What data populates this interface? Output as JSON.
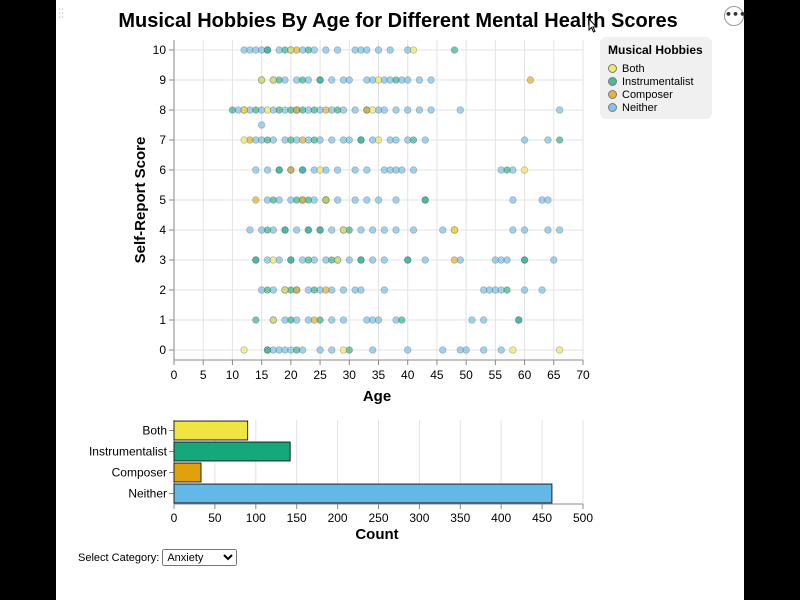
{
  "title": "Musical Hobbies By Age for Different Mental Health Scores",
  "menu_icon": "more-horizontal-icon",
  "colors": {
    "Both": "#f0e442",
    "Instrumentalist": "#14a87a",
    "Composer": "#e0a10a",
    "Neither": "#62b8e6",
    "grid": "#e3e3e3",
    "axis": "#888888"
  },
  "legend": {
    "title": "Musical Hobbies",
    "items": [
      "Both",
      "Instrumentalist",
      "Composer",
      "Neither"
    ]
  },
  "controls": {
    "select_label": "Select Category:",
    "selected": "Anxiety"
  },
  "chart_data": [
    {
      "type": "scatter",
      "title": "Musical Hobbies By Age for Different Mental Health Scores",
      "xlabel": "Age",
      "ylabel": "Self-Report Score",
      "xlim": [
        0,
        70
      ],
      "ylim": [
        0,
        10
      ],
      "xticks": [
        0,
        5,
        10,
        15,
        20,
        25,
        30,
        35,
        40,
        45,
        50,
        55,
        60,
        65,
        70
      ],
      "yticks": [
        0,
        1,
        2,
        3,
        4,
        5,
        6,
        7,
        8,
        9,
        10
      ],
      "grid": true,
      "legend_position": "top-right",
      "series": [
        {
          "name": "Neither",
          "points": [
            [
              12,
              10
            ],
            [
              13,
              10
            ],
            [
              14,
              10
            ],
            [
              15,
              10
            ],
            [
              16,
              10
            ],
            [
              18,
              10
            ],
            [
              20,
              10
            ],
            [
              22,
              10
            ],
            [
              24,
              10
            ],
            [
              26,
              10
            ],
            [
              28,
              10
            ],
            [
              31,
              10
            ],
            [
              32,
              10
            ],
            [
              33,
              10
            ],
            [
              35,
              10
            ],
            [
              37,
              10
            ],
            [
              40,
              10
            ],
            [
              15,
              9
            ],
            [
              17,
              9
            ],
            [
              19,
              9
            ],
            [
              21,
              9
            ],
            [
              23,
              9
            ],
            [
              25,
              9
            ],
            [
              27,
              9
            ],
            [
              29,
              9
            ],
            [
              30,
              9
            ],
            [
              33,
              9
            ],
            [
              34,
              9
            ],
            [
              36,
              9
            ],
            [
              37,
              9
            ],
            [
              39,
              9
            ],
            [
              40,
              9
            ],
            [
              42,
              9
            ],
            [
              44,
              9
            ],
            [
              11,
              8
            ],
            [
              13,
              8
            ],
            [
              15,
              8
            ],
            [
              17,
              8
            ],
            [
              19,
              8
            ],
            [
              21,
              8
            ],
            [
              23,
              8
            ],
            [
              25,
              8
            ],
            [
              27,
              8
            ],
            [
              29,
              8
            ],
            [
              31,
              8
            ],
            [
              33,
              8
            ],
            [
              35,
              8
            ],
            [
              36,
              8
            ],
            [
              38,
              8
            ],
            [
              40,
              8
            ],
            [
              42,
              8
            ],
            [
              44,
              8
            ],
            [
              49,
              8
            ],
            [
              66,
              8
            ],
            [
              15,
              7.5
            ],
            [
              14,
              7
            ],
            [
              15,
              7
            ],
            [
              17,
              7
            ],
            [
              19,
              7
            ],
            [
              21,
              7
            ],
            [
              23,
              7
            ],
            [
              25,
              7
            ],
            [
              27,
              7
            ],
            [
              29,
              7
            ],
            [
              30,
              7
            ],
            [
              32,
              7
            ],
            [
              34,
              7
            ],
            [
              37,
              7
            ],
            [
              38,
              7
            ],
            [
              40,
              7
            ],
            [
              43,
              7
            ],
            [
              60,
              7
            ],
            [
              64,
              7
            ],
            [
              14,
              6
            ],
            [
              16,
              6
            ],
            [
              18,
              6
            ],
            [
              20,
              6
            ],
            [
              22,
              6
            ],
            [
              24,
              6
            ],
            [
              26,
              6
            ],
            [
              28,
              6
            ],
            [
              31,
              6
            ],
            [
              33,
              6
            ],
            [
              36,
              6
            ],
            [
              37,
              6
            ],
            [
              38,
              6
            ],
            [
              39,
              6
            ],
            [
              41,
              6
            ],
            [
              56,
              6
            ],
            [
              58,
              6
            ],
            [
              16,
              5
            ],
            [
              18,
              5
            ],
            [
              20,
              5
            ],
            [
              22,
              5
            ],
            [
              24,
              5
            ],
            [
              26,
              5
            ],
            [
              28,
              5
            ],
            [
              31,
              5
            ],
            [
              33,
              5
            ],
            [
              35,
              5
            ],
            [
              38,
              5
            ],
            [
              43,
              5
            ],
            [
              58,
              5
            ],
            [
              63,
              5
            ],
            [
              64,
              5
            ],
            [
              13,
              4
            ],
            [
              15,
              4
            ],
            [
              17,
              4
            ],
            [
              19,
              4
            ],
            [
              21,
              4
            ],
            [
              23,
              4
            ],
            [
              25,
              4
            ],
            [
              27,
              4
            ],
            [
              29,
              4
            ],
            [
              32,
              4
            ],
            [
              34,
              4
            ],
            [
              36,
              4
            ],
            [
              38,
              4
            ],
            [
              41,
              4
            ],
            [
              46,
              4
            ],
            [
              58,
              4
            ],
            [
              60,
              4
            ],
            [
              64,
              4
            ],
            [
              66,
              4
            ],
            [
              14,
              3
            ],
            [
              16,
              3
            ],
            [
              18,
              3
            ],
            [
              20,
              3
            ],
            [
              22,
              3
            ],
            [
              24,
              3
            ],
            [
              26,
              3
            ],
            [
              28,
              3
            ],
            [
              30,
              3
            ],
            [
              32,
              3
            ],
            [
              34,
              3
            ],
            [
              36,
              3
            ],
            [
              40,
              3
            ],
            [
              43,
              3
            ],
            [
              49,
              3
            ],
            [
              55,
              3
            ],
            [
              56,
              3
            ],
            [
              57,
              3
            ],
            [
              60,
              3
            ],
            [
              65,
              3
            ],
            [
              15,
              2
            ],
            [
              17,
              2
            ],
            [
              19,
              2
            ],
            [
              21,
              2
            ],
            [
              23,
              2
            ],
            [
              25,
              2
            ],
            [
              27,
              2
            ],
            [
              29,
              2
            ],
            [
              31,
              2
            ],
            [
              32,
              2
            ],
            [
              36,
              2
            ],
            [
              53,
              2
            ],
            [
              54,
              2
            ],
            [
              55,
              2
            ],
            [
              56,
              2
            ],
            [
              60,
              2
            ],
            [
              63,
              2
            ],
            [
              17,
              1
            ],
            [
              19,
              1
            ],
            [
              21,
              1
            ],
            [
              23,
              1
            ],
            [
              27,
              1
            ],
            [
              29,
              1
            ],
            [
              33,
              1
            ],
            [
              34,
              1
            ],
            [
              35,
              1
            ],
            [
              38,
              1
            ],
            [
              51,
              1
            ],
            [
              53,
              1
            ],
            [
              59,
              1
            ],
            [
              16,
              0
            ],
            [
              17,
              0
            ],
            [
              18,
              0
            ],
            [
              19,
              0
            ],
            [
              20,
              0
            ],
            [
              22,
              0
            ],
            [
              25,
              0
            ],
            [
              27,
              0
            ],
            [
              34,
              0
            ],
            [
              40,
              0
            ],
            [
              46,
              0
            ],
            [
              49,
              0
            ],
            [
              50,
              0
            ],
            [
              53,
              0
            ],
            [
              56,
              0
            ]
          ]
        },
        {
          "name": "Instrumentalist",
          "points": [
            [
              16,
              10
            ],
            [
              19,
              10
            ],
            [
              23,
              10
            ],
            [
              48,
              10
            ],
            [
              18,
              9
            ],
            [
              22,
              9
            ],
            [
              25,
              9
            ],
            [
              38,
              9
            ],
            [
              10,
              8
            ],
            [
              14,
              8
            ],
            [
              18,
              8
            ],
            [
              20,
              8
            ],
            [
              22,
              8
            ],
            [
              24,
              8
            ],
            [
              28,
              8
            ],
            [
              16,
              7
            ],
            [
              20,
              7
            ],
            [
              24,
              7
            ],
            [
              32,
              7
            ],
            [
              41,
              7
            ],
            [
              66,
              7
            ],
            [
              18,
              6
            ],
            [
              22,
              6
            ],
            [
              57,
              6
            ],
            [
              17,
              5
            ],
            [
              21,
              5
            ],
            [
              23,
              5
            ],
            [
              26,
              5
            ],
            [
              43,
              5
            ],
            [
              16,
              4
            ],
            [
              19,
              4
            ],
            [
              23,
              4
            ],
            [
              25,
              4
            ],
            [
              30,
              4
            ],
            [
              14,
              3
            ],
            [
              20,
              3
            ],
            [
              23,
              3
            ],
            [
              27,
              3
            ],
            [
              32,
              3
            ],
            [
              40,
              3
            ],
            [
              60,
              3
            ],
            [
              16,
              2
            ],
            [
              20,
              2
            ],
            [
              24,
              2
            ],
            [
              57,
              2
            ],
            [
              14,
              1
            ],
            [
              20,
              1
            ],
            [
              25,
              1
            ],
            [
              39,
              1
            ],
            [
              59,
              1
            ],
            [
              16,
              0
            ],
            [
              21,
              0
            ],
            [
              30,
              0
            ]
          ]
        },
        {
          "name": "Composer",
          "points": [
            [
              21,
              10
            ],
            [
              61,
              9
            ],
            [
              12,
              8
            ],
            [
              21,
              8
            ],
            [
              26,
              8
            ],
            [
              33,
              8
            ],
            [
              13,
              7
            ],
            [
              22,
              7
            ],
            [
              20,
              6
            ],
            [
              14,
              5
            ],
            [
              22,
              5
            ],
            [
              48,
              4
            ],
            [
              48,
              3
            ],
            [
              21,
              2
            ],
            [
              26,
              2
            ],
            [
              24,
              1
            ]
          ]
        },
        {
          "name": "Both",
          "points": [
            [
              20,
              10
            ],
            [
              41,
              10
            ],
            [
              15,
              9
            ],
            [
              17,
              9
            ],
            [
              35,
              9
            ],
            [
              12,
              8
            ],
            [
              16,
              8
            ],
            [
              34,
              8
            ],
            [
              12,
              7
            ],
            [
              35,
              7
            ],
            [
              25,
              6
            ],
            [
              60,
              6
            ],
            [
              26,
              5
            ],
            [
              29,
              4
            ],
            [
              48,
              4
            ],
            [
              17,
              3
            ],
            [
              28,
              3
            ],
            [
              19,
              2
            ],
            [
              17,
              1
            ],
            [
              12,
              0
            ],
            [
              29,
              0
            ],
            [
              58,
              0
            ],
            [
              66,
              0
            ]
          ]
        }
      ]
    },
    {
      "type": "bar",
      "orientation": "horizontal",
      "xlabel": "Count",
      "categories": [
        "Both",
        "Instrumentalist",
        "Composer",
        "Neither"
      ],
      "values": [
        90,
        142,
        33,
        462
      ],
      "xlim": [
        0,
        500
      ],
      "xticks": [
        0,
        50,
        100,
        150,
        200,
        250,
        300,
        350,
        400,
        450,
        500
      ],
      "grid": true
    }
  ]
}
